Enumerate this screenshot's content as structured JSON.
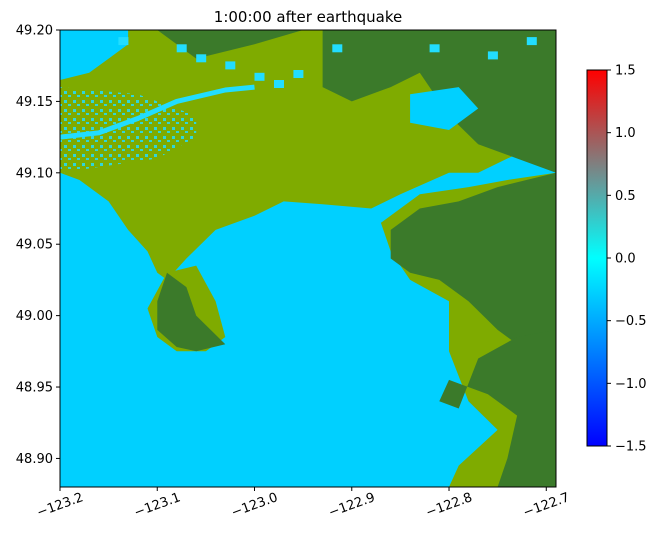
{
  "chart_data": {
    "type": "heatmap",
    "title": "1:00:00 after earthquake",
    "xlabel": "",
    "ylabel": "",
    "xlim": [
      -123.2,
      -122.69
    ],
    "ylim": [
      48.88,
      49.2
    ],
    "x_ticks": [
      -123.2,
      -123.1,
      -123.0,
      -122.9,
      -122.8,
      -122.7
    ],
    "x_tick_labels": [
      "−123.2",
      "−123.1",
      "−123.0",
      "−122.9",
      "−122.8",
      "−122.7"
    ],
    "y_ticks": [
      48.9,
      48.95,
      49.0,
      49.05,
      49.1,
      49.15,
      49.2
    ],
    "y_tick_labels": [
      "48.90",
      "48.95",
      "49.00",
      "49.05",
      "49.10",
      "49.15",
      "49.20"
    ],
    "colorbar": {
      "range": [
        -1.5,
        1.5
      ],
      "ticks": [
        -1.5,
        -1.0,
        -0.5,
        0.0,
        0.5,
        1.0,
        1.5
      ],
      "tick_labels": [
        "−1.5",
        "−1.0",
        "−0.5",
        "0.0",
        "0.5",
        "1.0",
        "1.5"
      ],
      "colors": [
        "#0000ff",
        "#00ffff",
        "#ff0000"
      ]
    },
    "colors": {
      "water": "#00d0ff",
      "water_light": "#22ddff",
      "lowland": "#7fab00",
      "upland": "#3b7a2a",
      "lowland_hatch": "#8db500"
    },
    "land_regions": [
      {
        "kind": "lowland",
        "polygon": [
          [
            -123.2,
            49.2
          ],
          [
            -122.69,
            49.2
          ],
          [
            -122.69,
            49.125
          ],
          [
            -122.74,
            49.11
          ],
          [
            -122.77,
            49.1
          ],
          [
            -122.8,
            49.1
          ],
          [
            -122.85,
            49.085
          ],
          [
            -122.88,
            49.075
          ],
          [
            -122.93,
            49.078
          ],
          [
            -122.97,
            49.08
          ],
          [
            -123.0,
            49.07
          ],
          [
            -123.04,
            49.06
          ],
          [
            -123.07,
            49.04
          ],
          [
            -123.09,
            49.025
          ],
          [
            -123.1,
            49.03
          ],
          [
            -123.11,
            49.045
          ],
          [
            -123.13,
            49.06
          ],
          [
            -123.15,
            49.08
          ],
          [
            -123.18,
            49.095
          ],
          [
            -123.2,
            49.1
          ]
        ]
      },
      {
        "kind": "lowland",
        "polygon": [
          [
            -123.09,
            49.03
          ],
          [
            -123.06,
            49.035
          ],
          [
            -123.04,
            49.01
          ],
          [
            -123.03,
            48.985
          ],
          [
            -123.05,
            48.975
          ],
          [
            -123.08,
            48.975
          ],
          [
            -123.1,
            48.985
          ],
          [
            -123.11,
            49.005
          ]
        ]
      },
      {
        "kind": "upland",
        "polygon": [
          [
            -123.09,
            49.03
          ],
          [
            -123.07,
            49.02
          ],
          [
            -123.06,
            49.0
          ],
          [
            -123.03,
            48.98
          ],
          [
            -123.06,
            48.975
          ],
          [
            -123.08,
            48.978
          ],
          [
            -123.1,
            48.99
          ],
          [
            -123.1,
            49.01
          ]
        ]
      },
      {
        "kind": "lowland",
        "polygon": [
          [
            -122.83,
            49.085
          ],
          [
            -122.78,
            49.09
          ],
          [
            -122.74,
            49.095
          ],
          [
            -122.69,
            49.1
          ],
          [
            -122.69,
            48.88
          ],
          [
            -122.8,
            48.88
          ],
          [
            -122.79,
            48.895
          ],
          [
            -122.75,
            48.92
          ],
          [
            -122.78,
            48.94
          ],
          [
            -122.8,
            48.975
          ],
          [
            -122.8,
            49.01
          ],
          [
            -122.84,
            49.025
          ],
          [
            -122.86,
            49.045
          ],
          [
            -122.87,
            49.065
          ]
        ]
      },
      {
        "kind": "upland",
        "polygon": [
          [
            -122.86,
            49.06
          ],
          [
            -122.83,
            49.075
          ],
          [
            -122.79,
            49.08
          ],
          [
            -122.75,
            49.09
          ],
          [
            -122.69,
            49.1
          ],
          [
            -122.69,
            48.96
          ],
          [
            -122.72,
            48.975
          ],
          [
            -122.75,
            48.99
          ],
          [
            -122.78,
            49.01
          ],
          [
            -122.81,
            49.025
          ],
          [
            -122.84,
            49.03
          ],
          [
            -122.86,
            49.04
          ]
        ]
      },
      {
        "kind": "upland",
        "polygon": [
          [
            -122.77,
            48.97
          ],
          [
            -122.73,
            48.985
          ],
          [
            -122.69,
            48.99
          ],
          [
            -122.69,
            48.88
          ],
          [
            -122.75,
            48.88
          ],
          [
            -122.74,
            48.9
          ],
          [
            -122.73,
            48.93
          ],
          [
            -122.76,
            48.945
          ],
          [
            -122.8,
            48.955
          ],
          [
            -122.81,
            48.94
          ],
          [
            -122.79,
            48.935
          ]
        ]
      },
      {
        "kind": "upland",
        "polygon": [
          [
            -122.93,
            49.2
          ],
          [
            -122.69,
            49.2
          ],
          [
            -122.69,
            49.1
          ],
          [
            -122.73,
            49.11
          ],
          [
            -122.77,
            49.12
          ],
          [
            -122.8,
            49.14
          ],
          [
            -122.83,
            49.17
          ],
          [
            -122.86,
            49.16
          ],
          [
            -122.9,
            49.15
          ],
          [
            -122.93,
            49.16
          ]
        ]
      },
      {
        "kind": "upland",
        "polygon": [
          [
            -123.2,
            49.2
          ],
          [
            -123.1,
            49.2
          ],
          [
            -123.08,
            49.19
          ],
          [
            -123.06,
            49.18
          ],
          [
            -123.0,
            49.19
          ],
          [
            -122.95,
            49.2
          ]
        ]
      },
      {
        "kind": "water",
        "polygon": [
          [
            -122.84,
            49.155
          ],
          [
            -122.79,
            49.16
          ],
          [
            -122.77,
            49.145
          ],
          [
            -122.8,
            49.13
          ],
          [
            -122.84,
            49.135
          ]
        ]
      },
      {
        "kind": "water",
        "polygon": [
          [
            -123.2,
            49.2
          ],
          [
            -123.13,
            49.2
          ],
          [
            -123.13,
            49.19
          ],
          [
            -123.15,
            49.18
          ],
          [
            -123.17,
            49.17
          ],
          [
            -123.2,
            49.165
          ]
        ]
      }
    ]
  }
}
